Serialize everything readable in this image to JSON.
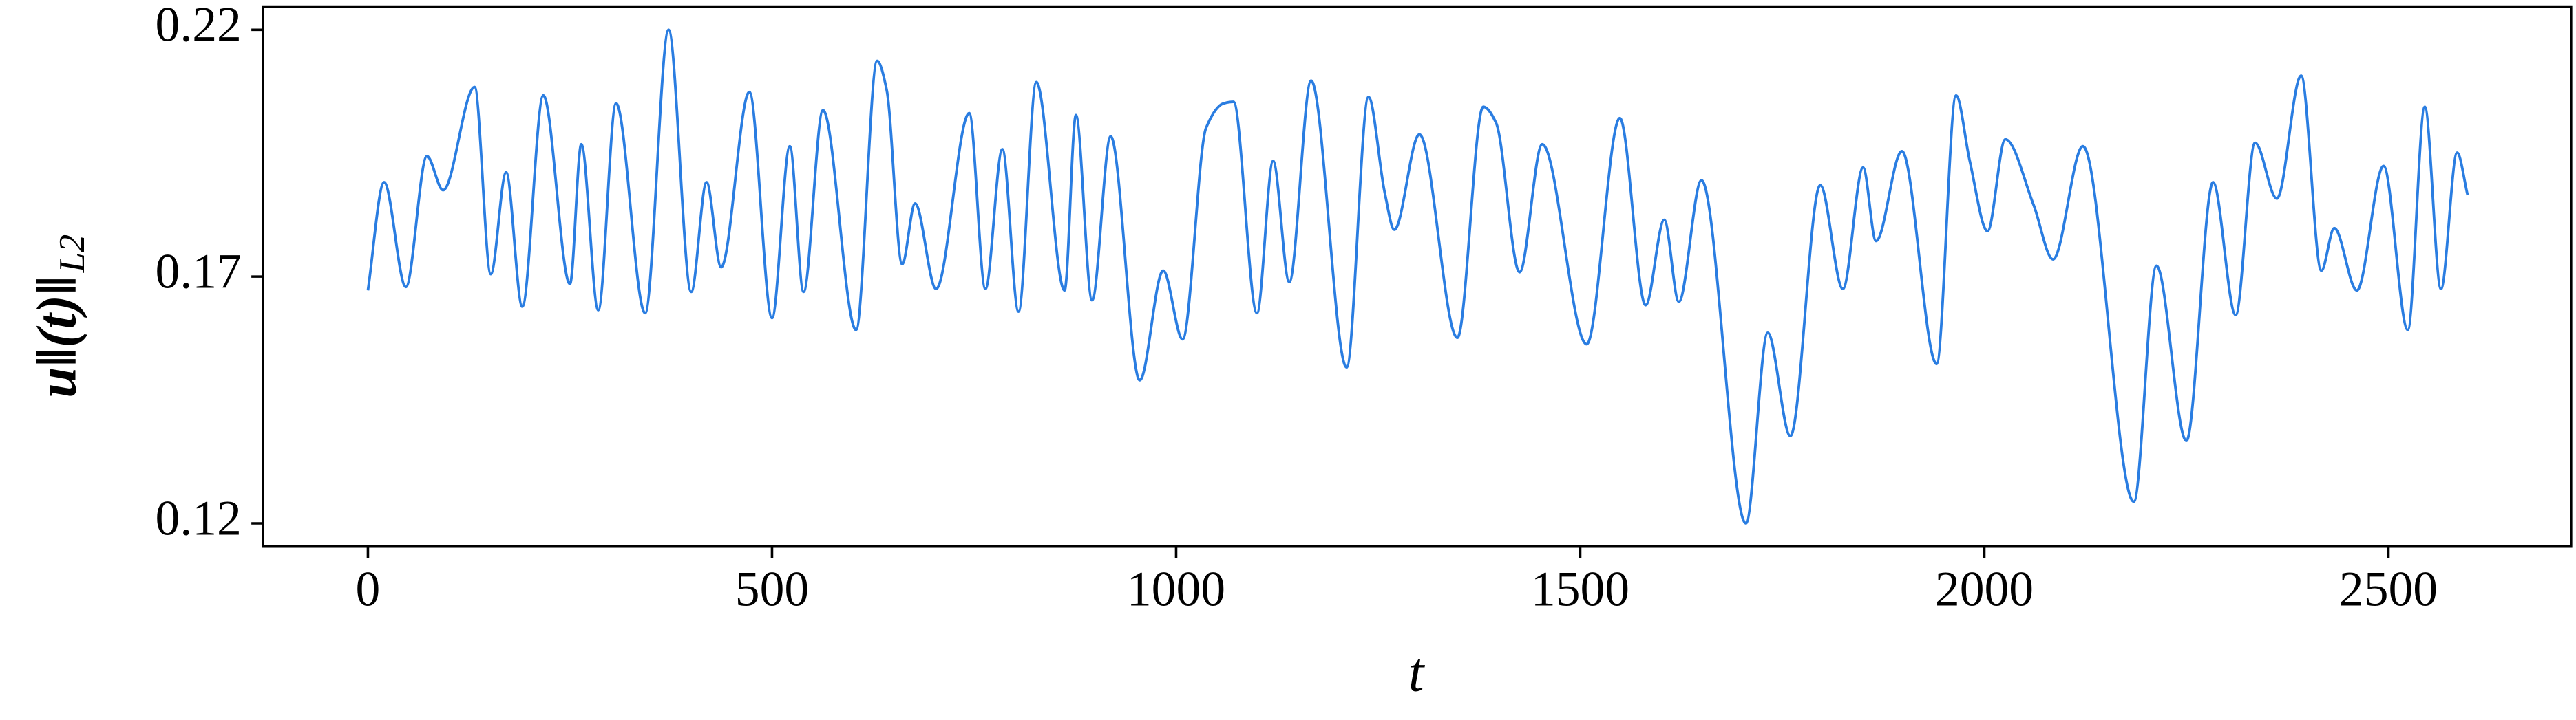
{
  "chart_data": {
    "type": "line",
    "xlabel": "t",
    "ylabel": "u‖(t)‖",
    "ylabel_subscript": "L2",
    "color": "#2a7de1",
    "xlim": [
      -130,
      2726
    ],
    "ylim": [
      0.1153,
      0.2247
    ],
    "xticks": [
      0,
      500,
      1000,
      1500,
      2000,
      2500
    ],
    "yticks": [
      0.12,
      0.17,
      0.22
    ],
    "x": [
      0,
      20,
      47,
      73,
      93,
      132,
      152,
      171,
      191,
      217,
      250,
      264,
      285,
      307,
      343,
      372,
      400,
      419,
      437,
      472,
      500,
      522,
      539,
      563,
      604,
      630,
      642,
      661,
      677,
      703,
      744,
      764,
      785,
      805,
      827,
      862,
      876,
      896,
      919,
      955,
      984,
      1008,
      1037,
      1059,
      1071,
      1100,
      1120,
      1140,
      1167,
      1211,
      1238,
      1258,
      1270,
      1301,
      1348,
      1380,
      1396,
      1425,
      1453,
      1508,
      1549,
      1581,
      1604,
      1622,
      1650,
      1705,
      1732,
      1760,
      1797,
      1825,
      1850,
      1866,
      1898,
      1941,
      1965,
      1982,
      2004,
      2026,
      2061,
      2085,
      2122,
      2185,
      2213,
      2250,
      2283,
      2311,
      2335,
      2362,
      2392,
      2417,
      2433,
      2461,
      2494,
      2524,
      2545,
      2565,
      2585,
      2598
    ],
    "values": [
      0.1672,
      0.1891,
      0.1679,
      0.1944,
      0.1875,
      0.2084,
      0.1705,
      0.1911,
      0.1639,
      0.2067,
      0.1685,
      0.1968,
      0.1632,
      0.2051,
      0.1626,
      0.22,
      0.1669,
      0.1891,
      0.1719,
      0.2074,
      0.1616,
      0.1964,
      0.1669,
      0.2037,
      0.1592,
      0.2137,
      0.2077,
      0.1725,
      0.1848,
      0.1675,
      0.2031,
      0.1675,
      0.1958,
      0.1629,
      0.2094,
      0.1672,
      0.2027,
      0.1652,
      0.1984,
      0.149,
      0.1712,
      0.1573,
      0.2001,
      0.2051,
      0.2054,
      0.1626,
      0.1934,
      0.1689,
      0.2097,
      0.1516,
      0.2064,
      0.1871,
      0.1795,
      0.1988,
      0.1576,
      0.2044,
      0.2011,
      0.1709,
      0.1968,
      0.1563,
      0.2021,
      0.1642,
      0.1815,
      0.1649,
      0.1895,
      0.12,
      0.1586,
      0.1377,
      0.1885,
      0.1675,
      0.1921,
      0.1772,
      0.1954,
      0.1523,
      0.2067,
      0.1934,
      0.1792,
      0.1978,
      0.1845,
      0.1735,
      0.1964,
      0.1244,
      0.1722,
      0.1367,
      0.1891,
      0.1622,
      0.1971,
      0.1858,
      0.2107,
      0.1712,
      0.1798,
      0.1672,
      0.1924,
      0.1592,
      0.2044,
      0.1675,
      0.1951,
      0.1865
    ]
  }
}
